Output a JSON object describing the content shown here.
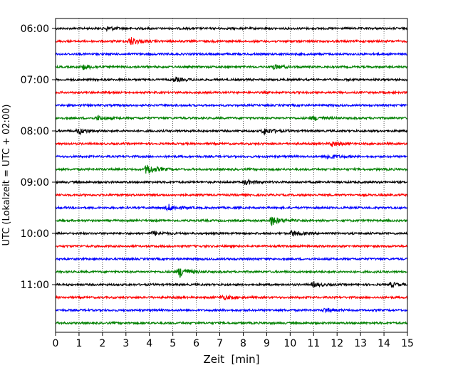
{
  "chart_data": {
    "type": "line",
    "title": "",
    "xlabel": "Zeit  [min]",
    "ylabel": "UTC (Lokalzeit = UTC + 02:00)",
    "xlim": [
      0,
      15
    ],
    "x_ticks": [
      0,
      1,
      2,
      3,
      4,
      5,
      6,
      7,
      8,
      9,
      10,
      11,
      12,
      13,
      14,
      15
    ],
    "y_tick_labels": [
      "06:00",
      "07:00",
      "08:00",
      "09:00",
      "10:00",
      "11:00"
    ],
    "row_interval_min": 15,
    "first_row": "06:00",
    "row_count": 24,
    "color_cycle": [
      "#000000",
      "#ff0000",
      "#0000ff",
      "#008000"
    ],
    "grid": "vertical dotted",
    "events": [
      {
        "row": 1,
        "minute": 3.2,
        "amp": 0.7
      },
      {
        "row": 0,
        "minute": 2.2,
        "amp": 0.35
      },
      {
        "row": 3,
        "minute": 1.2,
        "amp": 0.4
      },
      {
        "row": 3,
        "minute": 9.3,
        "amp": 0.4
      },
      {
        "row": 4,
        "minute": 5.1,
        "amp": 0.35
      },
      {
        "row": 7,
        "minute": 1.8,
        "amp": 0.35
      },
      {
        "row": 7,
        "minute": 11.0,
        "amp": 0.35
      },
      {
        "row": 8,
        "minute": 1.0,
        "amp": 0.5
      },
      {
        "row": 8,
        "minute": 8.9,
        "amp": 0.55
      },
      {
        "row": 9,
        "minute": 11.8,
        "amp": 0.45
      },
      {
        "row": 10,
        "minute": 11.6,
        "amp": 0.45
      },
      {
        "row": 11,
        "minute": 3.9,
        "amp": 0.9
      },
      {
        "row": 12,
        "minute": 8.1,
        "amp": 0.4
      },
      {
        "row": 14,
        "minute": 4.8,
        "amp": 0.55
      },
      {
        "row": 15,
        "minute": 9.2,
        "amp": 0.8
      },
      {
        "row": 16,
        "minute": 10.1,
        "amp": 0.45
      },
      {
        "row": 16,
        "minute": 4.2,
        "amp": 0.35
      },
      {
        "row": 19,
        "minute": 5.3,
        "amp": 0.9
      },
      {
        "row": 20,
        "minute": 11.0,
        "amp": 0.35
      },
      {
        "row": 20,
        "minute": 14.3,
        "amp": 0.35
      },
      {
        "row": 21,
        "minute": 7.1,
        "amp": 0.35
      },
      {
        "row": 22,
        "minute": 11.5,
        "amp": 0.35
      }
    ]
  }
}
